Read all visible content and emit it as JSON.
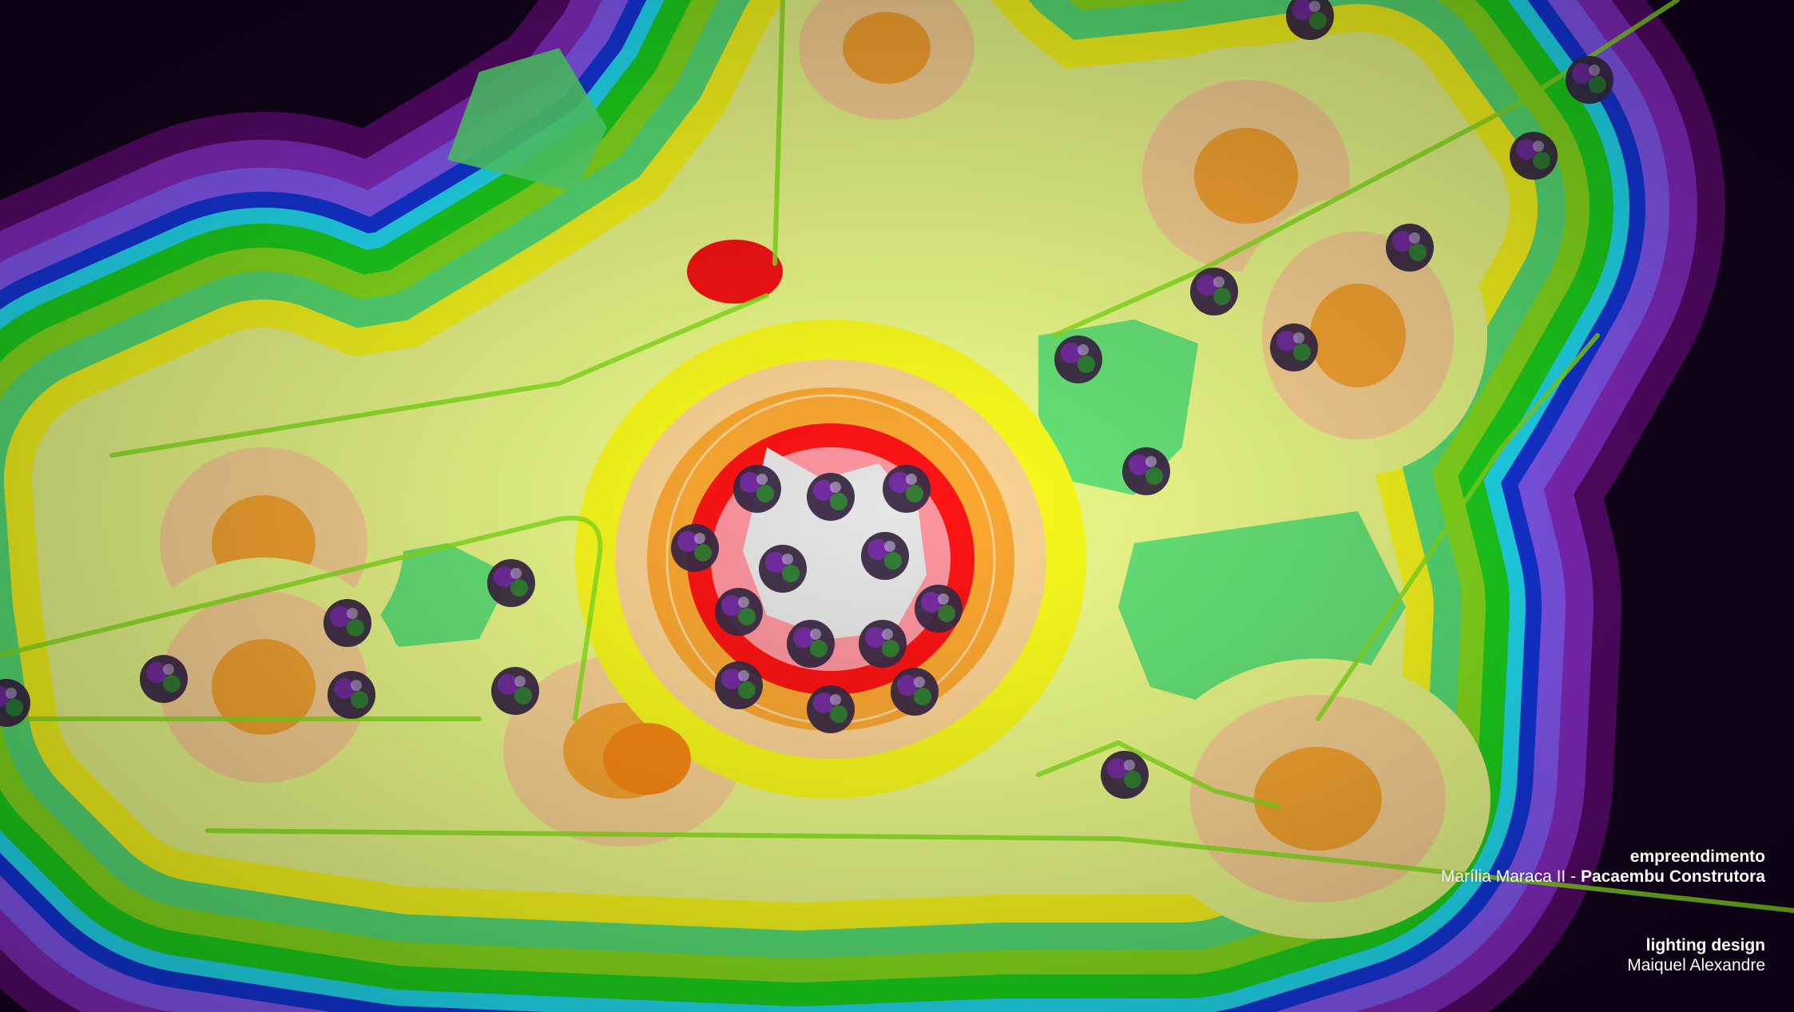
{
  "project": {
    "label": "empreendimento",
    "name": "Marília Maraca II",
    "separator": " - ",
    "builder": "Pacaembu Construtora"
  },
  "design": {
    "label": "lighting design",
    "author": "Maiquel Alexandre"
  },
  "palette": {
    "outer": "#14041e",
    "band_dark_purple": "#5a0a6e",
    "band_purple": "#8a2cc8",
    "band_violet": "#8a5cff",
    "band_blue": "#1438e6",
    "band_cyan": "#22e8ff",
    "band_green": "#1edc1e",
    "band_lime": "#8ce61e",
    "band_mint": "#5ae678",
    "band_yellow": "#ffff1e",
    "band_pale_yellow": "#f0ff8c",
    "band_peach": "#ffd796",
    "band_orange": "#ffaa32",
    "band_dark_orange": "#ff8c14",
    "band_red": "#ff1414",
    "band_pink": "#ff96a0",
    "center": "#e6e6e6",
    "tree": "#3c2a46"
  }
}
